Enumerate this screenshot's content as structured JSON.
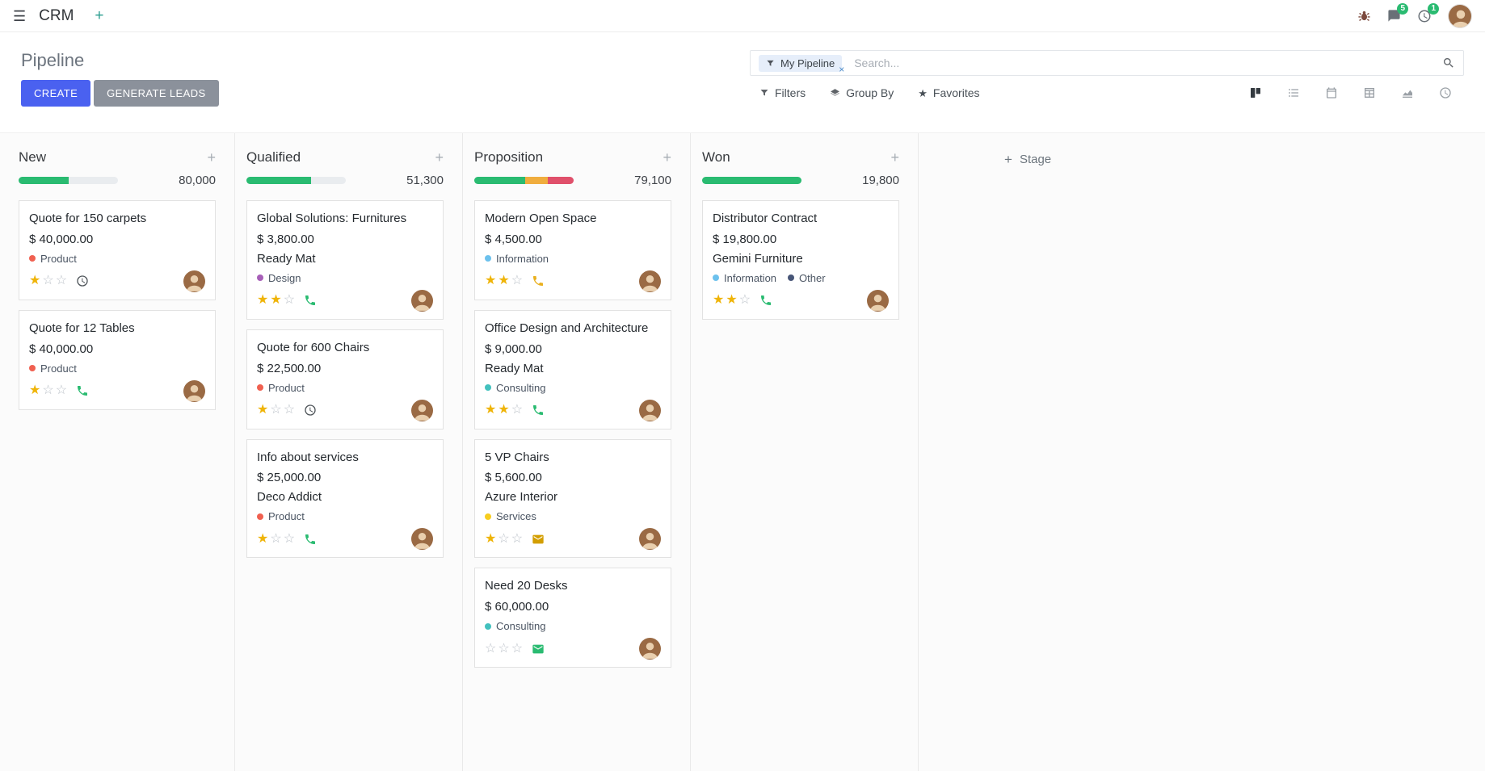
{
  "navbar": {
    "brand": "CRM",
    "messages_badge": "5",
    "activities_badge": "1"
  },
  "glyphs": {
    "hamburger": "☰",
    "plus": "+",
    "close": "×",
    "star": "★"
  },
  "control_panel": {
    "title": "Pipeline",
    "create_button": "CREATE",
    "generate_leads_button": "GENERATE LEADS",
    "search": {
      "facet_label": "My Pipeline",
      "placeholder": "Search...",
      "filters": "Filters",
      "group_by": "Group By",
      "favorites": "Favorites"
    }
  },
  "board": {
    "add_stage_label": "Stage",
    "columns": [
      {
        "name": "New",
        "total": "80,000",
        "progress": {
          "green": 50,
          "yellow": 0,
          "red": 0
        },
        "cards": [
          {
            "title": "Quote for 150 carpets",
            "amount": "$ 40,000.00",
            "tags": [
              {
                "label": "Product",
                "color": "red"
              }
            ],
            "stars_on": "★",
            "stars_off": "☆☆",
            "activity": "clock"
          },
          {
            "title": "Quote for 12 Tables",
            "amount": "$ 40,000.00",
            "tags": [
              {
                "label": "Product",
                "color": "red"
              }
            ],
            "stars_on": "★",
            "stars_off": "☆☆",
            "activity": "phone-green"
          }
        ]
      },
      {
        "name": "Qualified",
        "total": "51,300",
        "progress": {
          "green": 65,
          "yellow": 0,
          "red": 0
        },
        "cards": [
          {
            "title": "Global Solutions: Furnitures",
            "amount": "$ 3,800.00",
            "partner": "Ready Mat",
            "tags": [
              {
                "label": "Design",
                "color": "purple"
              }
            ],
            "stars_on": "★★",
            "stars_off": "☆",
            "activity": "phone-green"
          },
          {
            "title": "Quote for 600 Chairs",
            "amount": "$ 22,500.00",
            "tags": [
              {
                "label": "Product",
                "color": "red"
              }
            ],
            "stars_on": "★",
            "stars_off": "☆☆",
            "activity": "clock"
          },
          {
            "title": "Info about services",
            "amount": "$ 25,000.00",
            "partner": "Deco Addict",
            "tags": [
              {
                "label": "Product",
                "color": "red"
              }
            ],
            "stars_on": "★",
            "stars_off": "☆☆",
            "activity": "phone-green"
          }
        ]
      },
      {
        "name": "Proposition",
        "total": "79,100",
        "progress": {
          "green": 51,
          "yellow": 23,
          "red": 26
        },
        "cards": [
          {
            "title": "Modern Open Space",
            "amount": "$ 4,500.00",
            "tags": [
              {
                "label": "Information",
                "color": "blue"
              }
            ],
            "stars_on": "★★",
            "stars_off": "☆",
            "activity": "phone-yellow"
          },
          {
            "title": "Office Design and Architecture",
            "amount": "$ 9,000.00",
            "partner": "Ready Mat",
            "tags": [
              {
                "label": "Consulting",
                "color": "teal"
              }
            ],
            "stars_on": "★★",
            "stars_off": "☆",
            "activity": "phone-green"
          },
          {
            "title": "5 VP Chairs",
            "amount": "$ 5,600.00",
            "partner": "Azure Interior",
            "tags": [
              {
                "label": "Services",
                "color": "yellow"
              }
            ],
            "stars_on": "★",
            "stars_off": "☆☆",
            "activity": "envelope-orange"
          },
          {
            "title": "Need 20 Desks",
            "amount": "$ 60,000.00",
            "tags": [
              {
                "label": "Consulting",
                "color": "teal"
              }
            ],
            "stars_on": "",
            "stars_off": "☆☆☆",
            "activity": "envelope-green"
          }
        ]
      },
      {
        "name": "Won",
        "total": "19,800",
        "progress": {
          "green": 100,
          "yellow": 0,
          "red": 0
        },
        "cards": [
          {
            "title": "Distributor Contract",
            "amount": "$ 19,800.00",
            "partner": "Gemini Furniture",
            "tags": [
              {
                "label": "Information",
                "color": "blue"
              },
              {
                "label": "Other",
                "color": "dark"
              }
            ],
            "stars_on": "★★",
            "stars_off": "☆",
            "activity": "phone-green"
          }
        ]
      }
    ]
  },
  "colors": {
    "primary_button": "#4a61f0",
    "secondary_button": "#8b919b",
    "progress_green": "#2abb71",
    "progress_yellow": "#f0ad3e",
    "progress_red": "#e0506b",
    "badge_green": "#2abb71",
    "star_gold": "#efb408",
    "tag_red": "#f06050",
    "tag_purple": "#a75fb8",
    "tag_blue": "#6cc1ed",
    "tag_teal": "#43c1be",
    "tag_yellow": "#f7cd1f",
    "tag_dark": "#475577"
  }
}
